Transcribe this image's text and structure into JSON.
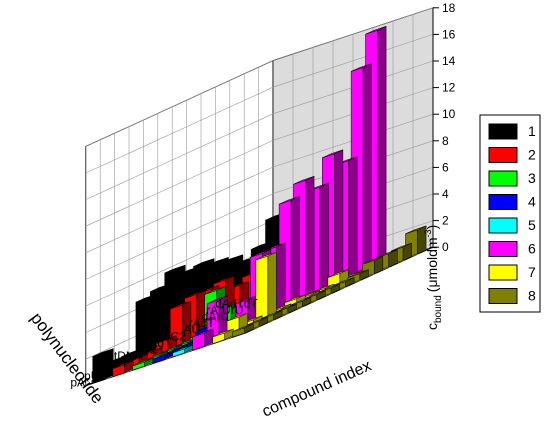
{
  "chart_data": {
    "type": "bar3d",
    "xlabel": "polynucleotide",
    "ylabel": "compound index",
    "zlabel_main": "c",
    "zlabel_sub": "bound",
    "zlabel_unit": "(μmoldm",
    "zlabel_exp": "-3",
    "zlabel_close": ")",
    "zlim": [
      0,
      18
    ],
    "zticks": [
      "0",
      "2",
      "4",
      "6",
      "8",
      "10",
      "12",
      "14",
      "16",
      "18"
    ],
    "categories": [
      "dAdTdT",
      "rArUrU",
      "dArU",
      "rAdT",
      "AU",
      "GC2",
      "dAdT",
      "AT2",
      "ctDNA",
      "dT",
      "dA",
      "pU",
      "pA"
    ],
    "series": [
      {
        "name": "1",
        "color": "#000000",
        "values": [
          6.3,
          4.6,
          4.0,
          4.6,
          4.9,
          5.3,
          5.2,
          5.8,
          4.9,
          4.6,
          1.0,
          1.0,
          2.0
        ]
      },
      {
        "name": "2",
        "color": "#ff0000",
        "values": [
          0.0,
          0.0,
          3.0,
          3.0,
          2.6,
          3.5,
          3.3,
          3.4,
          3.1,
          1.0,
          0.6,
          0.6,
          0.6
        ]
      },
      {
        "name": "3",
        "color": "#00ff00",
        "values": [
          0.0,
          0.0,
          3.4,
          2.0,
          1.2,
          1.0,
          1.5,
          3.2,
          0.4,
          0.3,
          0.3,
          0.3,
          0.3
        ]
      },
      {
        "name": "4",
        "color": "#0000ff",
        "values": [
          4.8,
          3.0,
          1.8,
          1.0,
          1.4,
          1.3,
          1.2,
          0.6,
          0.3,
          0.9,
          0.3,
          0.3,
          0.3
        ]
      },
      {
        "name": "5",
        "color": "#00ffff",
        "values": [
          4.8,
          0.5,
          0.5,
          0.4,
          0.5,
          0.5,
          0.5,
          0.3,
          0.3,
          0.3,
          0.3,
          0.3,
          0.3
        ]
      },
      {
        "name": "6",
        "color": "#ff00ff",
        "values": [
          17.8,
          15.5,
          9.0,
          10.0,
          8.0,
          9.0,
          8.0,
          5.0,
          5.0,
          2.0,
          1.0,
          3.0,
          1.0
        ]
      },
      {
        "name": "7",
        "color": "#ffff00",
        "values": [
          0.5,
          0.4,
          0.4,
          0.4,
          1.0,
          0.4,
          0.4,
          0.6,
          0.4,
          4.8,
          0.5,
          1.2,
          0.5
        ]
      },
      {
        "name": "8",
        "color": "#808000",
        "values": [
          1.8,
          1.0,
          1.0,
          1.0,
          0.5,
          0.4,
          0.4,
          0.4,
          0.4,
          0.4,
          0.4,
          0.4,
          0.4
        ]
      }
    ],
    "grid": true,
    "legend": "right"
  }
}
